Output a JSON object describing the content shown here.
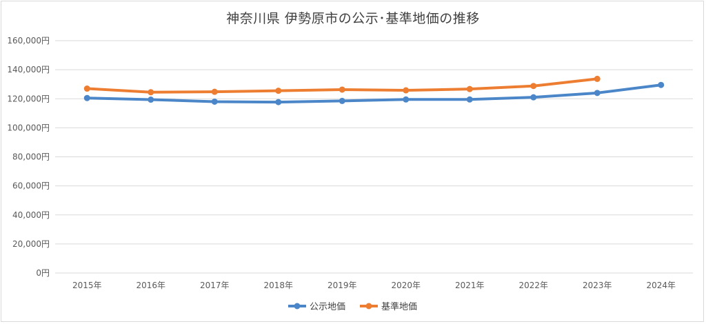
{
  "chart_data": {
    "type": "line",
    "title": "神奈川県 伊勢原市の公示･基準地価の推移",
    "categories": [
      "2015年",
      "2016年",
      "2017年",
      "2018年",
      "2019年",
      "2020年",
      "2021年",
      "2022年",
      "2023年",
      "2024年"
    ],
    "y_ticks": [
      "0円",
      "20,000円",
      "40,000円",
      "60,000円",
      "80,000円",
      "100,000円",
      "120,000円",
      "140,000円",
      "160,000円"
    ],
    "ylim": [
      0,
      160000
    ],
    "grid": true,
    "legend_position": "bottom",
    "series": [
      {
        "name": "公示地価",
        "color": "#4a86c8",
        "values": [
          120500,
          119400,
          118000,
          117700,
          118500,
          119500,
          119500,
          121000,
          124000,
          129500
        ]
      },
      {
        "name": "基準地価",
        "color": "#ed7d31",
        "values": [
          127000,
          124500,
          124800,
          125500,
          126300,
          125800,
          126700,
          128800,
          133700,
          null
        ]
      }
    ]
  }
}
